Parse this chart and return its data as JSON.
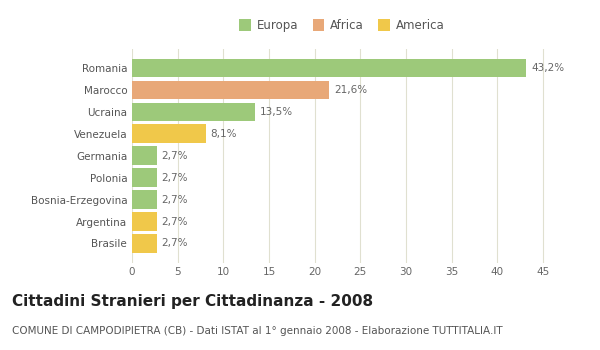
{
  "categories": [
    "Brasile",
    "Argentina",
    "Bosnia-Erzegovina",
    "Polonia",
    "Germania",
    "Venezuela",
    "Ucraina",
    "Marocco",
    "Romania"
  ],
  "values": [
    2.7,
    2.7,
    2.7,
    2.7,
    2.7,
    8.1,
    13.5,
    21.6,
    43.2
  ],
  "colors": [
    "#f0c84a",
    "#f0c84a",
    "#9dc97a",
    "#9dc97a",
    "#9dc97a",
    "#f0c84a",
    "#9dc97a",
    "#e8a878",
    "#9dc97a"
  ],
  "labels": [
    "2,7%",
    "2,7%",
    "2,7%",
    "2,7%",
    "2,7%",
    "8,1%",
    "13,5%",
    "21,6%",
    "43,2%"
  ],
  "legend": [
    {
      "label": "Europa",
      "color": "#9dc97a"
    },
    {
      "label": "Africa",
      "color": "#e8a878"
    },
    {
      "label": "America",
      "color": "#f0c84a"
    }
  ],
  "title": "Cittadini Stranieri per Cittadinanza - 2008",
  "subtitle": "COMUNE DI CAMPODIPIETRA (CB) - Dati ISTAT al 1° gennaio 2008 - Elaborazione TUTTITALIA.IT",
  "xlim": [
    0,
    46
  ],
  "xticks": [
    0,
    5,
    10,
    15,
    20,
    25,
    30,
    35,
    40,
    45
  ],
  "background_color": "#ffffff",
  "grid_color": "#e0e0d0",
  "bar_height": 0.85,
  "title_fontsize": 11,
  "subtitle_fontsize": 7.5,
  "label_fontsize": 7.5,
  "tick_fontsize": 7.5,
  "legend_fontsize": 8.5
}
